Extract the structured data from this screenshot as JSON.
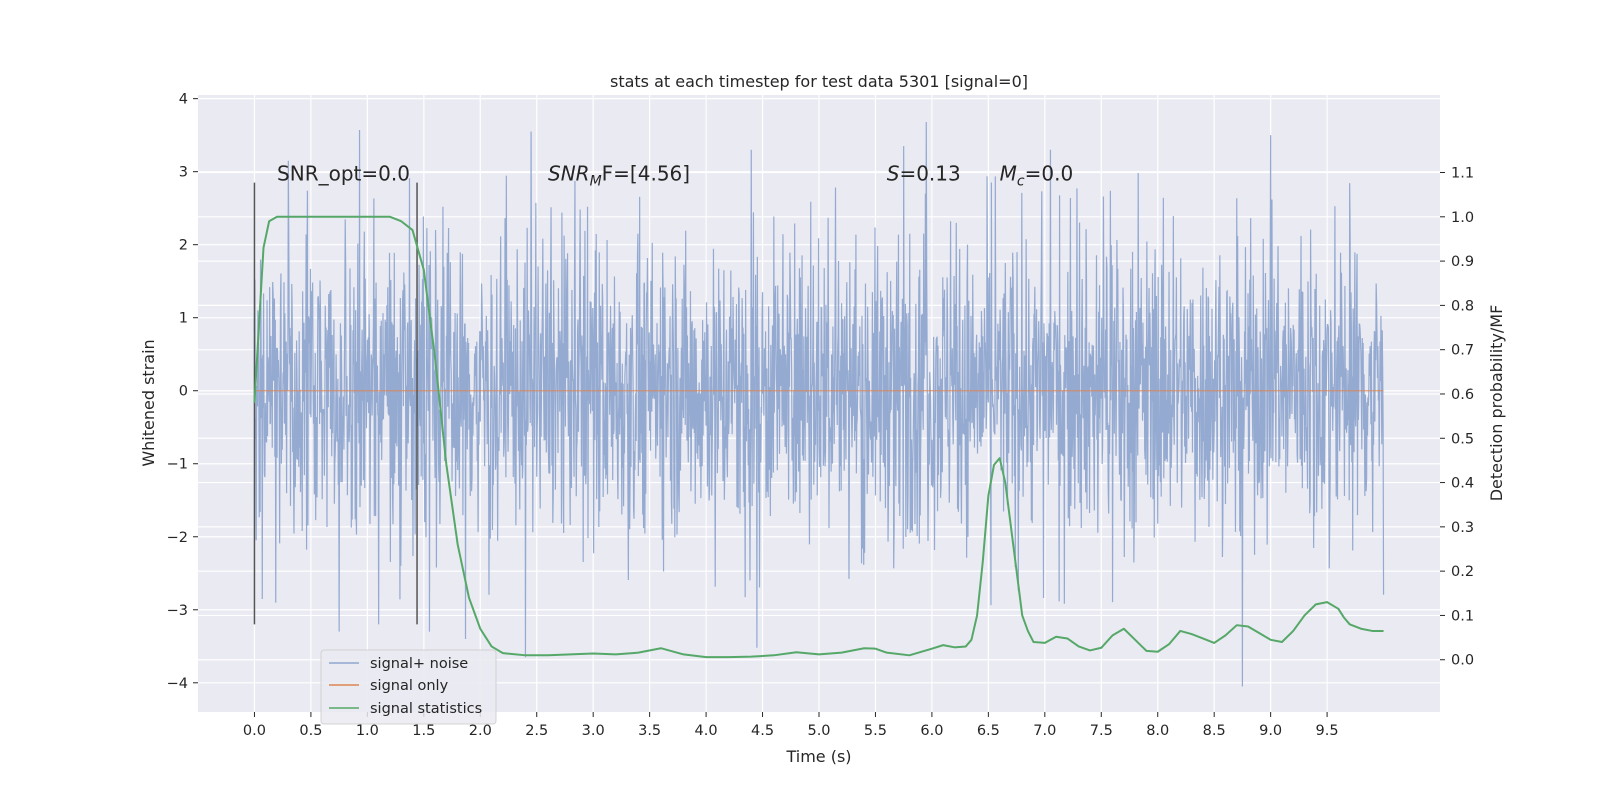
{
  "chart_data": {
    "type": "line",
    "title": "stats at each timestep for test data 5301 [signal=0]",
    "xlabel": "Time (s)",
    "ylabel": "Whitened strain",
    "y2label": "Detection probability/MF",
    "xlim": [
      -0.5,
      10.5
    ],
    "ylim": [
      -4.4,
      4.05
    ],
    "y2lim": [
      -0.118,
      1.275
    ],
    "xticks": [
      0.0,
      0.5,
      1.0,
      1.5,
      2.0,
      2.5,
      3.0,
      3.5,
      4.0,
      4.5,
      5.0,
      5.5,
      6.0,
      6.5,
      7.0,
      7.5,
      8.0,
      8.5,
      9.0,
      9.5
    ],
    "xtick_labels": [
      "0.0",
      "0.5",
      "1.0",
      "1.5",
      "2.0",
      "2.5",
      "3.0",
      "3.5",
      "4.0",
      "4.5",
      "5.0",
      "5.5",
      "6.0",
      "6.5",
      "7.0",
      "7.5",
      "8.0",
      "8.5",
      "9.0",
      "9.5"
    ],
    "yticks": [
      -4,
      -3,
      -2,
      -1,
      0,
      1,
      2,
      3,
      4
    ],
    "ytick_labels": [
      "−4",
      "−3",
      "−2",
      "−1",
      "0",
      "1",
      "2",
      "3",
      "4"
    ],
    "y2ticks": [
      0.0,
      0.1,
      0.2,
      0.3,
      0.4,
      0.5,
      0.6,
      0.7,
      0.8,
      0.9,
      1.0,
      1.1
    ],
    "y2tick_labels": [
      "0.0",
      "0.1",
      "0.2",
      "0.3",
      "0.4",
      "0.5",
      "0.6",
      "0.7",
      "0.8",
      "0.9",
      "1.0",
      "1.1"
    ],
    "grid": true,
    "legend_position": "lower-left",
    "series": [
      {
        "name": "signal+ noise",
        "axis": "left",
        "color": "#8fa6cf",
        "x_range": [
          0.0,
          10.0
        ],
        "typical_band": [
          -1.5,
          1.6
        ],
        "noise_peaks": [
          [
            0.93,
            3.57
          ],
          [
            0.3,
            3.15
          ],
          [
            2.45,
            3.55
          ],
          [
            4.4,
            3.3
          ],
          [
            5.75,
            3.35
          ],
          [
            5.95,
            3.68
          ],
          [
            7.05,
            3.3
          ],
          [
            9.0,
            3.5
          ],
          [
            0.75,
            -3.3
          ],
          [
            1.1,
            -3.2
          ],
          [
            1.87,
            -3.4
          ],
          [
            2.4,
            -3.65
          ],
          [
            4.45,
            -3.52
          ],
          [
            8.75,
            -4.05
          ],
          [
            1.55,
            -3.3
          ]
        ]
      },
      {
        "name": "signal only",
        "axis": "left",
        "color": "#dd8452",
        "x": [
          0.0,
          10.0
        ],
        "y": [
          0.0,
          0.0
        ]
      },
      {
        "name": "signal statistics",
        "axis": "right",
        "color": "#55a868",
        "x": [
          0.0,
          0.08,
          0.13,
          0.2,
          0.3,
          0.5,
          0.8,
          1.0,
          1.2,
          1.3,
          1.4,
          1.5,
          1.6,
          1.7,
          1.8,
          1.9,
          2.0,
          2.1,
          2.2,
          2.4,
          2.6,
          2.8,
          3.0,
          3.2,
          3.4,
          3.6,
          3.8,
          4.0,
          4.2,
          4.4,
          4.6,
          4.8,
          5.0,
          5.2,
          5.4,
          5.5,
          5.6,
          5.8,
          6.0,
          6.1,
          6.2,
          6.3,
          6.35,
          6.4,
          6.45,
          6.5,
          6.55,
          6.6,
          6.65,
          6.7,
          6.75,
          6.8,
          6.85,
          6.9,
          7.0,
          7.1,
          7.2,
          7.3,
          7.4,
          7.5,
          7.6,
          7.7,
          7.8,
          7.9,
          8.0,
          8.1,
          8.2,
          8.3,
          8.4,
          8.5,
          8.6,
          8.7,
          8.8,
          8.9,
          9.0,
          9.1,
          9.2,
          9.3,
          9.4,
          9.5,
          9.6,
          9.65,
          9.7,
          9.8,
          9.9,
          10.0
        ],
        "y": [
          0.58,
          0.93,
          0.99,
          1.0,
          1.0,
          1.0,
          1.0,
          1.0,
          1.0,
          0.99,
          0.97,
          0.88,
          0.68,
          0.44,
          0.26,
          0.14,
          0.07,
          0.03,
          0.015,
          0.01,
          0.01,
          0.012,
          0.014,
          0.012,
          0.016,
          0.026,
          0.012,
          0.006,
          0.006,
          0.007,
          0.01,
          0.017,
          0.012,
          0.016,
          0.026,
          0.025,
          0.016,
          0.01,
          0.025,
          0.033,
          0.028,
          0.03,
          0.045,
          0.1,
          0.22,
          0.37,
          0.44,
          0.455,
          0.4,
          0.3,
          0.2,
          0.1,
          0.065,
          0.04,
          0.038,
          0.052,
          0.048,
          0.03,
          0.021,
          0.027,
          0.055,
          0.07,
          0.045,
          0.02,
          0.018,
          0.035,
          0.065,
          0.058,
          0.048,
          0.038,
          0.055,
          0.078,
          0.075,
          0.06,
          0.045,
          0.04,
          0.065,
          0.1,
          0.125,
          0.13,
          0.115,
          0.095,
          0.08,
          0.07,
          0.065,
          0.065
        ]
      }
    ],
    "vlines": [
      {
        "x": 0.0,
        "y": [
          -3.2,
          2.85
        ],
        "color": "#555555"
      },
      {
        "x": 1.44,
        "y": [
          -3.2,
          2.85
        ],
        "color": "#555555"
      }
    ],
    "annotations": [
      {
        "id": "snr_opt",
        "text": "SNR_opt=0.0",
        "x": 0.2,
        "y": 2.88,
        "style": "plain"
      },
      {
        "id": "snr_mf",
        "base": "SNR",
        "sub": "M",
        "rest": "F=[4.56]",
        "x": 2.6,
        "y": 2.88,
        "style": "math"
      },
      {
        "id": "s_val",
        "base": "S",
        "rest": "=0.13",
        "x": 5.6,
        "y": 2.88,
        "style": "math"
      },
      {
        "id": "mc_val",
        "base": "M",
        "sub": "c",
        "rest": "=0.0",
        "x": 6.6,
        "y": 2.88,
        "style": "math"
      }
    ]
  },
  "colors": {
    "axes_bg": "#eaeaf2",
    "grid": "#ffffff",
    "text": "#262626"
  }
}
